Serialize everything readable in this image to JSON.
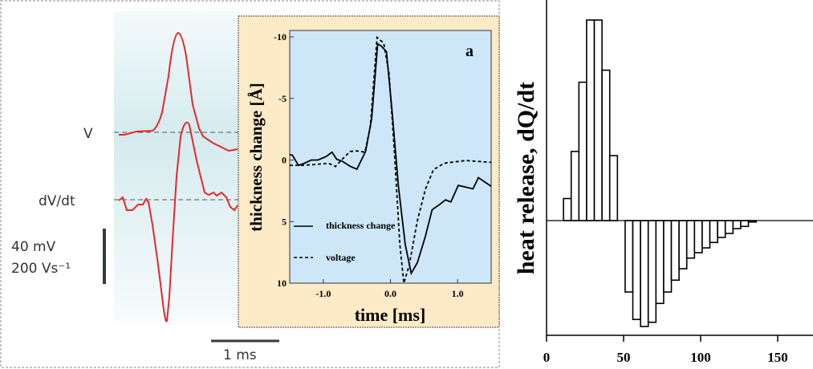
{
  "left_panel": {
    "trace_labels": [
      "V",
      "dV/dt"
    ],
    "scale_bar_v": [
      "40 mV",
      "200 Vs⁻¹"
    ],
    "scale_bar_t": "1 ms",
    "trace_color": "#e8262c"
  },
  "chart_data": [
    {
      "type": "line",
      "panel_label": "a",
      "xlabel": "time [ms]",
      "ylabel": "thickness change [Å]",
      "xlim": [
        -1.5,
        1.5
      ],
      "ylim": [
        10,
        -10
      ],
      "y_reversed": true,
      "xticks": [
        "-1.0",
        "0.0",
        "1.0"
      ],
      "xtick_values": [
        -1.0,
        0.0,
        1.0
      ],
      "yticks": [
        "-10",
        "-5",
        "0",
        "5",
        "10"
      ],
      "ytick_values": [
        -10,
        -5,
        0,
        5,
        10
      ],
      "legend_placement": "bottom-left",
      "plot_background": "#cde7f8",
      "panel_background": "#fdebc8",
      "series": [
        {
          "name": "thickness change",
          "style": "solid",
          "x": [
            -1.5,
            -1.46,
            -1.37,
            -1.28,
            -1.18,
            -1.08,
            -0.96,
            -0.87,
            -0.8,
            -0.72,
            -0.6,
            -0.5,
            -0.37,
            -0.28,
            -0.19,
            -0.14,
            -0.06,
            0.02,
            0.12,
            0.22,
            0.31,
            0.4,
            0.52,
            0.62,
            0.72,
            0.82,
            0.9,
            1.01,
            1.12,
            1.23,
            1.31,
            1.5
          ],
          "y": [
            -0.43,
            -0.4,
            0.43,
            0.26,
            0,
            0,
            -0.28,
            -0.64,
            -0.06,
            0.09,
            0.51,
            0.74,
            -0.7,
            -3.36,
            -9.43,
            -9.28,
            -8.8,
            -4.2,
            2.17,
            6.85,
            9.2,
            8.34,
            6.2,
            4.04,
            3.66,
            3.23,
            3.4,
            2.06,
            2.2,
            2.34,
            1.43,
            2.13
          ]
        },
        {
          "name": "voltage",
          "style": "dashed",
          "x": [
            -1.5,
            -1.32,
            -1.12,
            -0.92,
            -0.82,
            -0.72,
            -0.6,
            -0.5,
            -0.38,
            -0.3,
            -0.2,
            -0.1,
            -0.02,
            0.06,
            0.14,
            0.2,
            0.28,
            0.4,
            0.52,
            0.64,
            0.8,
            1.12,
            1.5
          ],
          "y": [
            0.43,
            0.43,
            0.36,
            0.26,
            0.53,
            -0.06,
            -0.7,
            -0.74,
            -0.64,
            -2.7,
            -9.96,
            -9.5,
            -7,
            -0.6,
            6.85,
            10,
            8.55,
            4.94,
            2.38,
            0.79,
            0.26,
            0.04,
            0.19
          ]
        }
      ]
    },
    {
      "type": "bar",
      "ylabel": "heat release, dQ/dt",
      "xlabel": "",
      "xlim": [
        0,
        172
      ],
      "xticks": [
        "0",
        "50",
        "100",
        "150"
      ],
      "xtick_values": [
        0,
        50,
        100,
        150
      ],
      "bar_width": 5,
      "bar_fill": "#ffffff",
      "bar_edge": "#000000",
      "bars": {
        "x_start": [
          11,
          16,
          21,
          26,
          31,
          36,
          41,
          51,
          56,
          61,
          66,
          71,
          76,
          81,
          86,
          91,
          96,
          101,
          106,
          111,
          116,
          121,
          126,
          131
        ],
        "values": [
          1.1,
          3.45,
          6.9,
          10,
          10,
          7.5,
          3.24,
          -3.56,
          -4.93,
          -5.28,
          -5.07,
          -4.13,
          -3.56,
          -2.97,
          -2.4,
          -1.87,
          -1.6,
          -1.36,
          -1.09,
          -0.84,
          -0.64,
          -0.4,
          -0.29,
          -0.07
        ]
      }
    }
  ]
}
